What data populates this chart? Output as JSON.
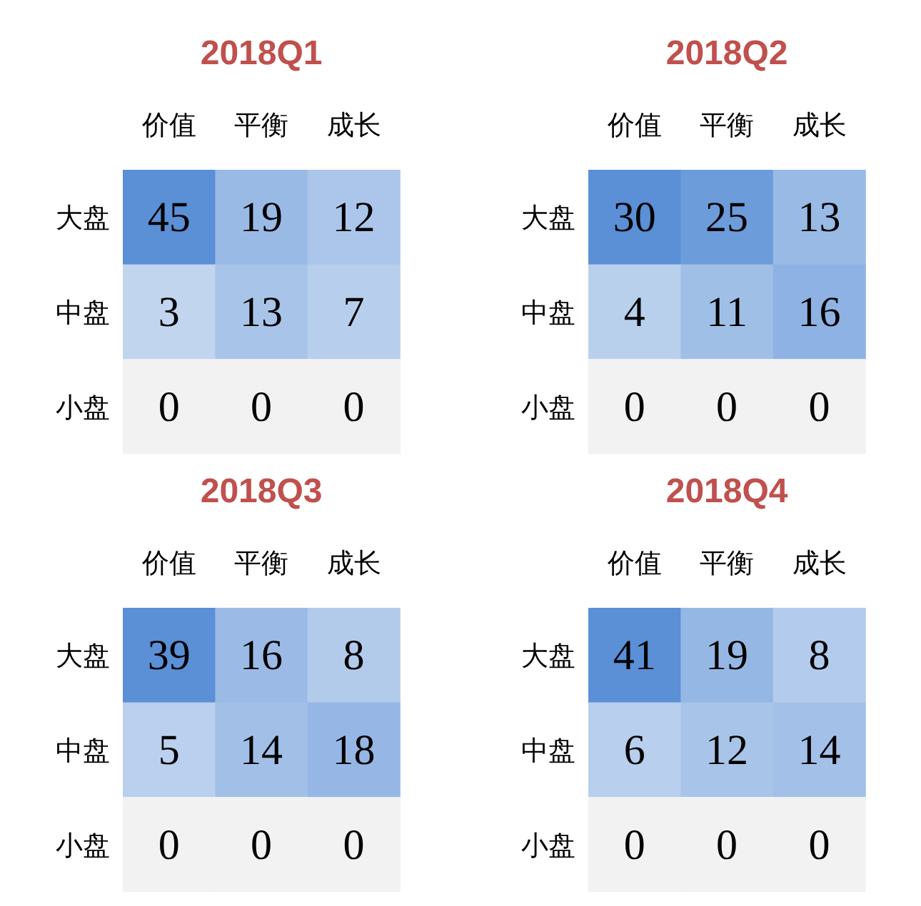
{
  "chart_data": [
    {
      "type": "heatmap",
      "title": "2018Q1",
      "categories": [
        "价值",
        "平衡",
        "成长"
      ],
      "y_categories": [
        "大盘",
        "中盘",
        "小盘"
      ],
      "cells": [
        [
          45,
          19,
          12
        ],
        [
          3,
          13,
          7
        ],
        [
          0,
          0,
          0
        ]
      ],
      "data_labels": true
    },
    {
      "type": "heatmap",
      "title": "2018Q2",
      "categories": [
        "价值",
        "平衡",
        "成长"
      ],
      "y_categories": [
        "大盘",
        "中盘",
        "小盘"
      ],
      "cells": [
        [
          30,
          25,
          13
        ],
        [
          4,
          11,
          16
        ],
        [
          0,
          0,
          0
        ]
      ],
      "data_labels": true
    },
    {
      "type": "heatmap",
      "title": "2018Q3",
      "categories": [
        "价值",
        "平衡",
        "成长"
      ],
      "y_categories": [
        "大盘",
        "中盘",
        "小盘"
      ],
      "cells": [
        [
          39,
          16,
          8
        ],
        [
          5,
          14,
          18
        ],
        [
          0,
          0,
          0
        ]
      ],
      "data_labels": true
    },
    {
      "type": "heatmap",
      "title": "2018Q4",
      "categories": [
        "价值",
        "平衡",
        "成长"
      ],
      "y_categories": [
        "大盘",
        "中盘",
        "小盘"
      ],
      "cells": [
        [
          41,
          19,
          8
        ],
        [
          6,
          12,
          14
        ],
        [
          0,
          0,
          0
        ]
      ],
      "data_labels": true
    }
  ]
}
